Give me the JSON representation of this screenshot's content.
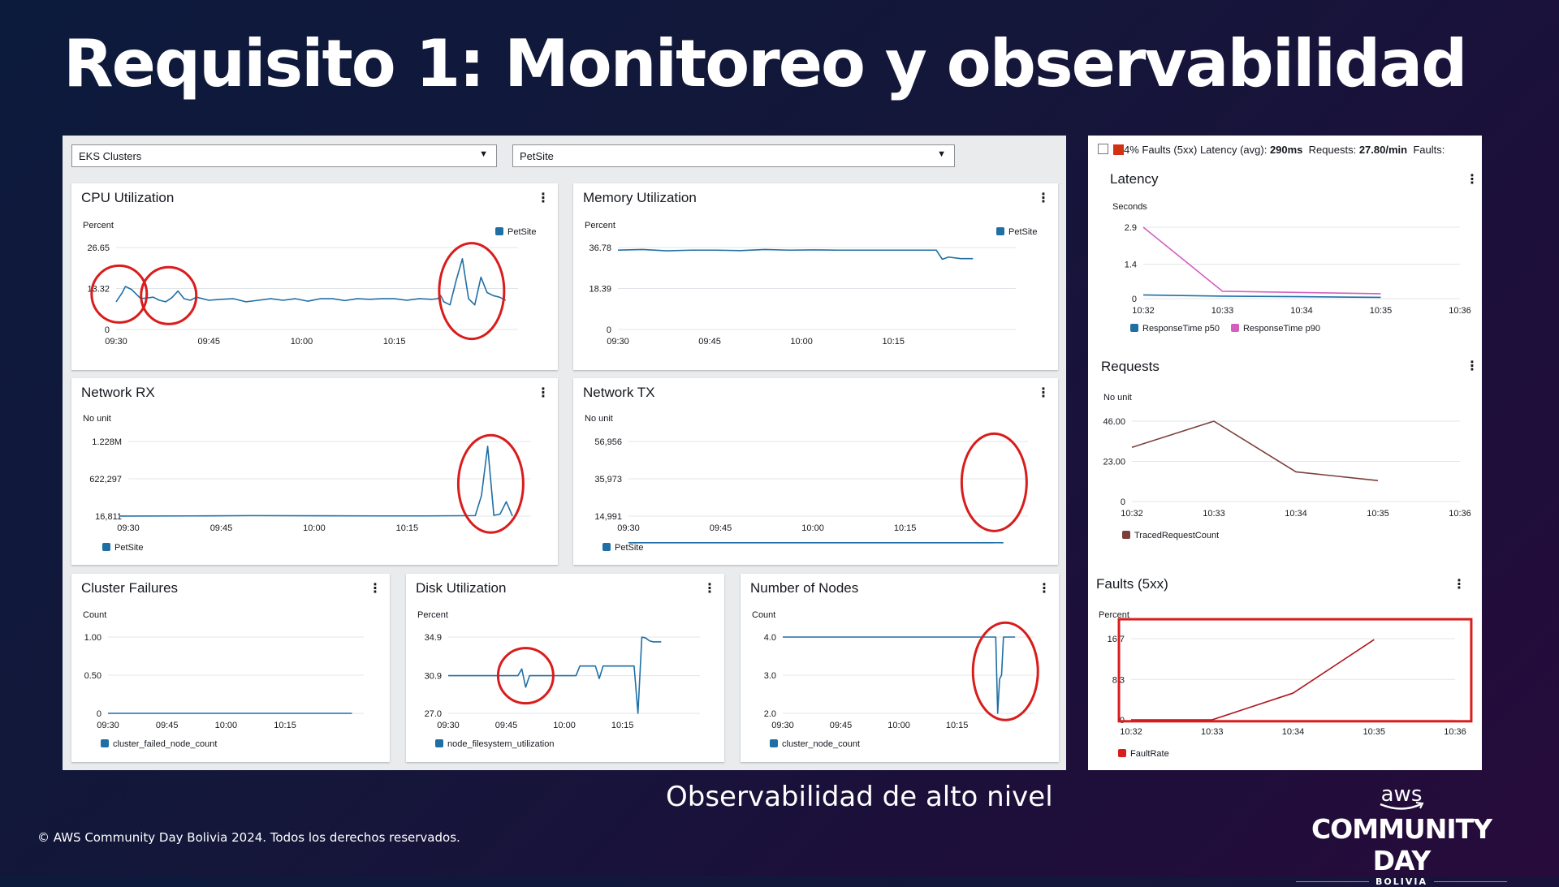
{
  "slide": {
    "title": "Requisito 1: Monitoreo y observabilidad",
    "caption": "Observabilidad de alto nivel",
    "copyright": "© AWS Community Day Bolivia 2024. Todos los derechos reservados.",
    "logo": {
      "aws": "aws",
      "event": "COMMUNITY DAY",
      "country": "BOLIVIA"
    }
  },
  "colors": {
    "series_blue": "#1f6fa5",
    "highlight_red": "#d91c1c",
    "pink": "#d45fbf",
    "brown": "#7b3f3a",
    "fault_red": "#b0141d"
  },
  "filters": {
    "cluster_type": "EKS Clusters",
    "cluster_name": "PetSite",
    "dropdown_icon": "caret-down-icon"
  },
  "left_widgets": {
    "cpu": {
      "title": "CPU Utilization",
      "unit": "Percent",
      "legend": "PetSite"
    },
    "memory": {
      "title": "Memory Utilization",
      "unit": "Percent",
      "legend": "PetSite"
    },
    "network_rx": {
      "title": "Network RX",
      "unit": "No unit",
      "legend": "PetSite"
    },
    "network_tx": {
      "title": "Network TX",
      "unit": "No unit",
      "legend": "PetSite"
    },
    "cluster_failures": {
      "title": "Cluster Failures",
      "unit": "Count",
      "legend": "cluster_failed_node_count"
    },
    "disk": {
      "title": "Disk Utilization",
      "unit": "Percent",
      "legend": "node_filesystem_utilization"
    },
    "nodes": {
      "title": "Number of Nodes",
      "unit": "Count",
      "legend": "cluster_node_count"
    }
  },
  "right_panel": {
    "summary": {
      "faults": "4% Faults (5xx)",
      "latency_label": "Latency (avg):",
      "latency_value": "290ms",
      "requests_label": "Requests:",
      "requests_value": "27.80/min",
      "faults_trailing": "Faults:"
    },
    "latency": {
      "title": "Latency",
      "unit": "Seconds",
      "legend": [
        "ResponseTime p50",
        "ResponseTime p90"
      ]
    },
    "requests": {
      "title": "Requests",
      "unit": "No unit",
      "legend": "TracedRequestCount"
    },
    "faults": {
      "title": "Faults (5xx)",
      "unit": "Percent",
      "legend": "FaultRate"
    },
    "menu_icon": "kebab-menu-icon"
  },
  "chart_data": [
    {
      "id": "cpu",
      "type": "line",
      "ylabel": "Percent",
      "xlim": [
        0,
        65
      ],
      "ylim": [
        0,
        26.65
      ],
      "xticks": [
        {
          "v": 0,
          "l": "09:30"
        },
        {
          "v": 15,
          "l": "09:45"
        },
        {
          "v": 30,
          "l": "10:00"
        },
        {
          "v": 45,
          "l": "10:15"
        }
      ],
      "yticks": [
        {
          "v": 0,
          "l": "0"
        },
        {
          "v": 13.32,
          "l": "13.32"
        },
        {
          "v": 26.65,
          "l": "26.65"
        }
      ],
      "series": [
        {
          "name": "PetSite",
          "color": "#1f6fa5",
          "x": [
            0,
            1,
            1.5,
            2.5,
            4,
            6,
            7,
            8,
            9,
            10,
            11,
            12,
            13,
            15,
            17,
            19,
            21,
            23,
            25,
            27,
            29,
            31,
            33,
            35,
            37,
            39,
            41,
            43,
            45,
            47,
            49,
            51,
            52,
            52.5,
            53,
            54,
            55,
            56,
            57,
            58,
            59,
            60,
            61,
            62,
            63
          ],
          "y": [
            9,
            12,
            14,
            13,
            10,
            10.5,
            9.5,
            9,
            10.3,
            12.5,
            10,
            9.5,
            10.5,
            9.5,
            9.8,
            10,
            9,
            9.5,
            10,
            9.5,
            10,
            9.2,
            10,
            10,
            9.4,
            10,
            9.8,
            10,
            10,
            9.5,
            10,
            9.8,
            10,
            11,
            9,
            8,
            16,
            23,
            10,
            8,
            17,
            12,
            11,
            10.5,
            9.5
          ]
        }
      ],
      "annotations": [
        "circle",
        "circle",
        "circle"
      ]
    },
    {
      "id": "memory",
      "type": "line",
      "ylabel": "Percent",
      "xlim": [
        0,
        65
      ],
      "ylim": [
        0,
        36.78
      ],
      "xticks": [
        {
          "v": 0,
          "l": "09:30"
        },
        {
          "v": 15,
          "l": "09:45"
        },
        {
          "v": 30,
          "l": "10:00"
        },
        {
          "v": 45,
          "l": "10:15"
        }
      ],
      "yticks": [
        {
          "v": 0,
          "l": "0"
        },
        {
          "v": 18.39,
          "l": "18.39"
        },
        {
          "v": 36.78,
          "l": "36.78"
        }
      ],
      "series": [
        {
          "name": "PetSite",
          "color": "#1f6fa5",
          "x": [
            0,
            4,
            8,
            12,
            16,
            20,
            24,
            28,
            32,
            36,
            40,
            44,
            48,
            52,
            53,
            54,
            56,
            58
          ],
          "y": [
            35.6,
            35.9,
            35.3,
            35.6,
            35.6,
            35.4,
            35.9,
            35.6,
            35.7,
            35.6,
            35.6,
            35.6,
            35.6,
            35.6,
            31.5,
            32.5,
            31.8,
            31.8
          ]
        }
      ]
    },
    {
      "id": "network_rx",
      "type": "line",
      "ylabel": "No unit",
      "xlim": [
        0,
        65
      ],
      "ylim": [
        16811,
        1228000
      ],
      "xticks": [
        {
          "v": 0,
          "l": "09:30"
        },
        {
          "v": 15,
          "l": "09:45"
        },
        {
          "v": 30,
          "l": "10:00"
        },
        {
          "v": 45,
          "l": "10:15"
        }
      ],
      "yticks": [
        {
          "v": 16811,
          "l": "16,811"
        },
        {
          "v": 622297,
          "l": "622,297"
        },
        {
          "v": 1228000,
          "l": "1.228M"
        }
      ],
      "series": [
        {
          "name": "PetSite",
          "color": "#1f6fa5",
          "x": [
            -4,
            10,
            20,
            30,
            40,
            48,
            56,
            57,
            58,
            59,
            60,
            61,
            62
          ],
          "y": [
            18000,
            20000,
            25000,
            22000,
            20000,
            20000,
            25000,
            350000,
            1150000,
            30000,
            50000,
            250000,
            20000
          ]
        }
      ],
      "annotations": [
        "circle"
      ]
    },
    {
      "id": "network_tx",
      "type": "line",
      "ylabel": "No unit",
      "xlim": [
        0,
        65
      ],
      "ylim": [
        14991,
        56956
      ],
      "xticks": [
        {
          "v": 0,
          "l": "09:30"
        },
        {
          "v": 15,
          "l": "09:45"
        },
        {
          "v": 30,
          "l": "10:00"
        },
        {
          "v": 45,
          "l": "10:15"
        }
      ],
      "yticks": [
        {
          "v": 14991,
          "l": "14,991"
        },
        {
          "v": 35973,
          "l": "35,973"
        },
        {
          "v": 56956,
          "l": "56,956"
        }
      ],
      "series": [
        {
          "name": "PetSite",
          "color": "#1f6fa5",
          "x": [
            0,
            1,
            2,
            3,
            4,
            5,
            6,
            7,
            8,
            9,
            10,
            11,
            12,
            13,
            14,
            15,
            16,
            17,
            18,
            19,
            20,
            21,
            22,
            23,
            24,
            25,
            26,
            27,
            28,
            29,
            30,
            31,
            32,
            33,
            34,
            35,
            36,
            37,
            38,
            39,
            40,
            41,
            42,
            43,
            44,
            45,
            46,
            47,
            48,
            49,
            50,
            51,
            52,
            53,
            54,
            55,
            56,
            57,
            58,
            59,
            60,
            61
          ],
          "y": [
            33,
            34,
            32,
            36,
            31,
            34,
            33,
            27,
            35,
            29,
            37,
            33,
            40,
            30,
            36,
            33,
            34,
            29,
            35,
            32,
            34,
            31,
            34,
            33,
            30,
            36,
            32,
            35,
            31,
            33,
            34,
            29,
            33,
            30,
            35,
            32,
            34,
            33,
            32,
            34,
            31,
            35,
            30,
            34,
            32,
            36,
            30,
            34,
            31,
            33,
            35,
            29,
            33,
            34,
            32,
            33,
            30,
            33,
            17,
            30,
            56,
            32
          ]
        }
      ],
      "annotations": [
        "circle"
      ]
    },
    {
      "id": "cluster_failures",
      "type": "line",
      "ylabel": "Count",
      "xlim": [
        0,
        65
      ],
      "ylim": [
        0,
        1
      ],
      "xticks": [
        {
          "v": 0,
          "l": "09:30"
        },
        {
          "v": 15,
          "l": "09:45"
        },
        {
          "v": 30,
          "l": "10:00"
        },
        {
          "v": 45,
          "l": "10:15"
        }
      ],
      "yticks": [
        {
          "v": 0,
          "l": "0"
        },
        {
          "v": 0.5,
          "l": "0.50"
        },
        {
          "v": 1,
          "l": "1.00"
        }
      ],
      "series": [
        {
          "name": "cluster_failed_node_count",
          "color": "#1f6fa5",
          "x": [
            0,
            62
          ],
          "y": [
            0,
            0
          ]
        }
      ]
    },
    {
      "id": "disk",
      "type": "line",
      "ylabel": "Percent",
      "xlim": [
        0,
        65
      ],
      "ylim": [
        27.0,
        34.9
      ],
      "xticks": [
        {
          "v": 0,
          "l": "09:30"
        },
        {
          "v": 15,
          "l": "09:45"
        },
        {
          "v": 30,
          "l": "10:00"
        },
        {
          "v": 45,
          "l": "10:15"
        }
      ],
      "yticks": [
        {
          "v": 27.0,
          "l": "27.0"
        },
        {
          "v": 30.9,
          "l": "30.9"
        },
        {
          "v": 34.9,
          "l": "34.9"
        }
      ],
      "series": [
        {
          "name": "node_filesystem_utilization",
          "color": "#1f6fa5",
          "x": [
            0,
            5,
            10,
            15,
            18,
            19,
            20,
            21,
            22,
            25,
            30,
            33,
            34,
            36,
            38,
            39,
            40,
            41,
            42,
            45,
            48,
            49,
            50,
            51,
            52,
            53,
            55
          ],
          "y": [
            30.9,
            30.9,
            30.9,
            30.9,
            30.9,
            31.6,
            29.7,
            30.9,
            30.9,
            30.9,
            30.9,
            30.9,
            31.9,
            31.9,
            31.9,
            30.6,
            31.9,
            31.9,
            31.9,
            31.9,
            31.9,
            27.0,
            34.9,
            34.8,
            34.5,
            34.4,
            34.4
          ]
        }
      ],
      "annotations": [
        "circle"
      ]
    },
    {
      "id": "nodes",
      "type": "line",
      "ylabel": "Count",
      "xlim": [
        0,
        65
      ],
      "ylim": [
        2,
        4
      ],
      "xticks": [
        {
          "v": 0,
          "l": "09:30"
        },
        {
          "v": 15,
          "l": "09:45"
        },
        {
          "v": 30,
          "l": "10:00"
        },
        {
          "v": 45,
          "l": "10:15"
        }
      ],
      "yticks": [
        {
          "v": 2,
          "l": "2.0"
        },
        {
          "v": 3,
          "l": "3.0"
        },
        {
          "v": 4,
          "l": "4.0"
        }
      ],
      "series": [
        {
          "name": "cluster_node_count",
          "color": "#1f6fa5",
          "x": [
            0,
            30,
            55,
            55.5,
            56,
            56.5,
            57,
            58,
            59,
            60
          ],
          "y": [
            4,
            4,
            4,
            2,
            2.9,
            3,
            4,
            4,
            4,
            4
          ]
        }
      ],
      "annotations": [
        "circle"
      ]
    },
    {
      "id": "latency",
      "type": "line",
      "ylabel": "Seconds",
      "xlim": [
        0,
        4
      ],
      "ylim": [
        0,
        2.9
      ],
      "xticks": [
        {
          "v": 0,
          "l": "10:32"
        },
        {
          "v": 1,
          "l": "10:33"
        },
        {
          "v": 2,
          "l": "10:34"
        },
        {
          "v": 3,
          "l": "10:35"
        },
        {
          "v": 4,
          "l": "10:36"
        }
      ],
      "yticks": [
        {
          "v": 0,
          "l": "0"
        },
        {
          "v": 1.4,
          "l": "1.4"
        },
        {
          "v": 2.9,
          "l": "2.9"
        }
      ],
      "series": [
        {
          "name": "ResponseTime p50",
          "color": "#1f6fa5",
          "x": [
            0,
            1,
            2,
            3
          ],
          "y": [
            0.15,
            0.1,
            0.08,
            0.05
          ]
        },
        {
          "name": "ResponseTime p90",
          "color": "#d45fbf",
          "x": [
            0,
            1,
            2,
            3
          ],
          "y": [
            2.9,
            0.3,
            0.25,
            0.2
          ]
        }
      ]
    },
    {
      "id": "requests",
      "type": "line",
      "ylabel": "No unit",
      "xlim": [
        0,
        4
      ],
      "ylim": [
        0,
        46
      ],
      "xticks": [
        {
          "v": 0,
          "l": "10:32"
        },
        {
          "v": 1,
          "l": "10:33"
        },
        {
          "v": 2,
          "l": "10:34"
        },
        {
          "v": 3,
          "l": "10:35"
        },
        {
          "v": 4,
          "l": "10:36"
        }
      ],
      "yticks": [
        {
          "v": 0,
          "l": "0"
        },
        {
          "v": 23,
          "l": "23.00"
        },
        {
          "v": 46,
          "l": "46.00"
        }
      ],
      "series": [
        {
          "name": "TracedRequestCount",
          "color": "#7b3f3a",
          "x": [
            0,
            1,
            2,
            3
          ],
          "y": [
            31,
            46,
            17,
            12
          ]
        }
      ]
    },
    {
      "id": "faults",
      "type": "line",
      "ylabel": "Percent",
      "xlim": [
        0,
        4
      ],
      "ylim": [
        0,
        16.7
      ],
      "xticks": [
        {
          "v": 0,
          "l": "10:32"
        },
        {
          "v": 1,
          "l": "10:33"
        },
        {
          "v": 2,
          "l": "10:34"
        },
        {
          "v": 3,
          "l": "10:35"
        },
        {
          "v": 4,
          "l": "10:36"
        }
      ],
      "yticks": [
        {
          "v": 0,
          "l": "0"
        },
        {
          "v": 8.3,
          "l": "8.3"
        },
        {
          "v": 16.7,
          "l": "16.7"
        }
      ],
      "series": [
        {
          "name": "FaultRate",
          "color": "#b0141d",
          "x": [
            0,
            1,
            2,
            3
          ],
          "y": [
            0,
            0,
            5.5,
            16.5
          ]
        }
      ],
      "annotations": [
        "rectangle"
      ]
    }
  ]
}
